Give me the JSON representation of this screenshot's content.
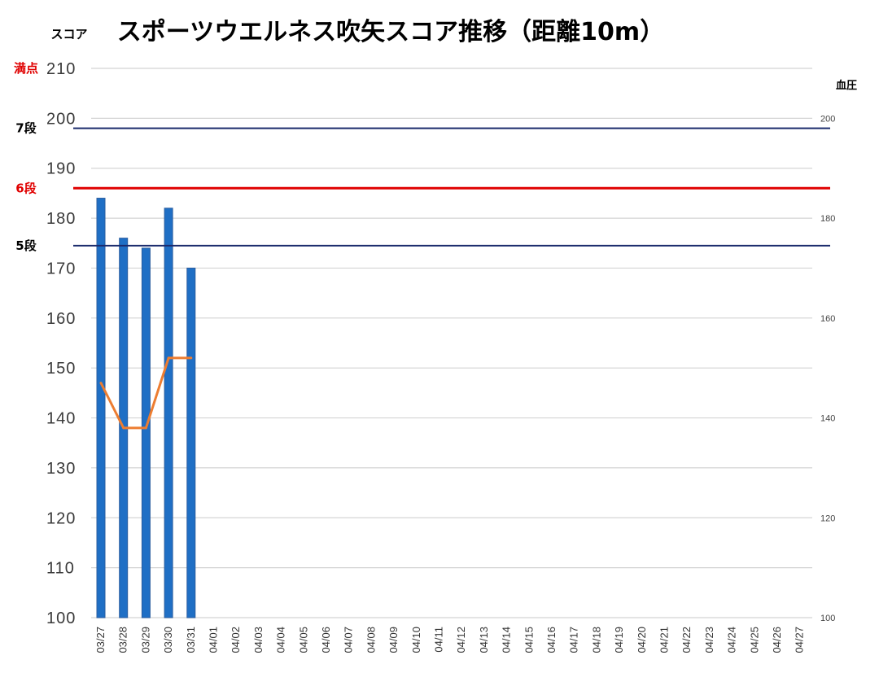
{
  "chart_data": {
    "type": "bar",
    "title": "スポーツウエルネス吹矢スコア推移（距離10m）",
    "ylabel": "スコア",
    "y2label": "血圧",
    "ylim": [
      100,
      210
    ],
    "y2lim": [
      100,
      210
    ],
    "yticks": [
      100,
      110,
      120,
      130,
      140,
      150,
      160,
      170,
      180,
      190,
      200,
      210
    ],
    "y2ticks": [
      100,
      120,
      140,
      160,
      180,
      200
    ],
    "grid": true,
    "categories": [
      "03/27",
      "03/28",
      "03/29",
      "03/30",
      "03/31",
      "04/01",
      "04/02",
      "04/03",
      "04/04",
      "04/05",
      "04/06",
      "04/07",
      "04/08",
      "04/09",
      "04/10",
      "04/11",
      "04/12",
      "04/13",
      "04/14",
      "04/15",
      "04/16",
      "04/17",
      "04/18",
      "04/19",
      "04/20",
      "04/21",
      "04/22",
      "04/23",
      "04/24",
      "04/25",
      "04/26",
      "04/27"
    ],
    "series": [
      {
        "type": "bar",
        "axis": "left",
        "color": "#1f6fc5",
        "values": [
          184,
          176,
          174,
          182,
          170,
          null,
          null,
          null,
          null,
          null,
          null,
          null,
          null,
          null,
          null,
          null,
          null,
          null,
          null,
          null,
          null,
          null,
          null,
          null,
          null,
          null,
          null,
          null,
          null,
          null,
          null,
          null
        ]
      },
      {
        "type": "line",
        "axis": "right",
        "color": "#ed7d31",
        "values": [
          147,
          138,
          138,
          152,
          152,
          null,
          null,
          null,
          null,
          null,
          null,
          null,
          null,
          null,
          null,
          null,
          null,
          null,
          null,
          null,
          null,
          null,
          null,
          null,
          null,
          null,
          null,
          null,
          null,
          null,
          null,
          null
        ]
      }
    ],
    "reference_lines": [
      {
        "label": "満点",
        "value": 210,
        "color": "#c8c8c8",
        "label_color": "#e00000"
      },
      {
        "label": "7段",
        "value": 198,
        "color": "#1a2a6c",
        "label_color": "#000000"
      },
      {
        "label": "6段",
        "value": 186,
        "color": "#e00000",
        "label_color": "#e00000"
      },
      {
        "label": "5段",
        "value": 174.5,
        "color": "#1a2a6c",
        "label_color": "#000000"
      }
    ]
  }
}
